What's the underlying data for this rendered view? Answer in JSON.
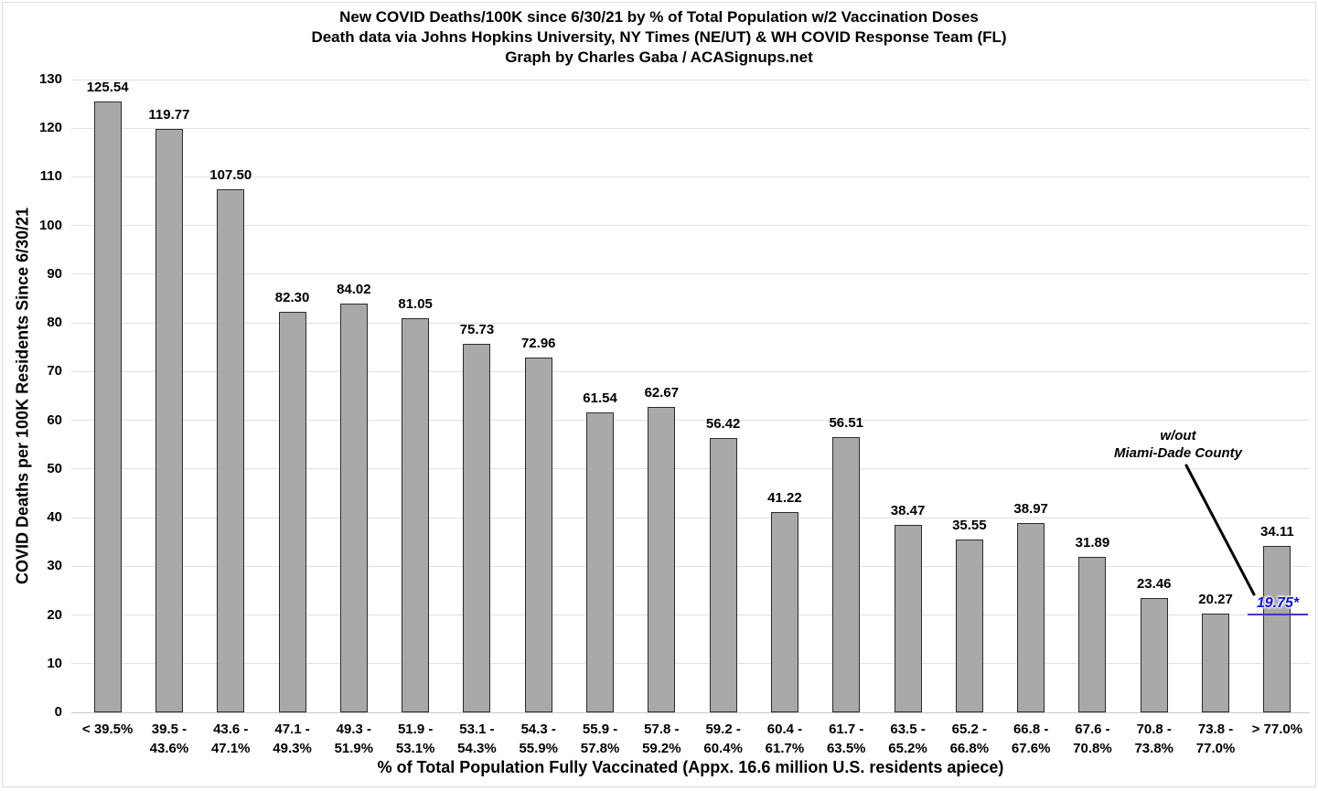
{
  "chart_data": {
    "type": "bar",
    "title": "New COVID Deaths/100K since 6/30/21 by % of Total Population w/2 Vaccination Doses",
    "subtitle": "Death data via Johns Hopkins University, NY Times (NE/UT) & WH COVID Response Team (FL)",
    "credit": "Graph by Charles Gaba / ACASignups.net",
    "categories": [
      "< 39.5%",
      "39.5 -\n43.6%",
      "43.6 -\n47.1%",
      "47.1 -\n49.3%",
      "49.3 -\n51.9%",
      "51.9 -\n53.1%",
      "53.1 -\n54.3%",
      "54.3 -\n55.9%",
      "55.9 -\n57.8%",
      "57.8 -\n59.2%",
      "59.2 -\n60.4%",
      "60.4 -\n61.7%",
      "61.7 -\n63.5%",
      "63.5 -\n65.2%",
      "65.2 -\n66.8%",
      "66.8 -\n67.6%",
      "67.6 -\n70.8%",
      "70.8 -\n73.8%",
      "73.8 -\n77.0%",
      "> 77.0%"
    ],
    "values": [
      125.54,
      119.77,
      107.5,
      82.3,
      84.02,
      81.05,
      75.73,
      72.96,
      61.54,
      62.67,
      56.42,
      41.22,
      56.51,
      38.47,
      35.55,
      38.97,
      31.89,
      23.46,
      20.27,
      34.11
    ],
    "xlabel": "% of Total Population Fully Vaccinated (Appx. 16.6 million U.S. residents apiece)",
    "ylabel": "COVID Deaths per 100K Residents Since 6/30/21",
    "ylim": [
      0,
      130
    ],
    "ytick_step": 10,
    "grid": "horizontal-only",
    "legend": "none",
    "annotations": [
      {
        "type": "callout",
        "label": "w/out\nMiami-Dade County",
        "points_to_category": "> 77.0%"
      },
      {
        "type": "value-marker",
        "label": "19.75*",
        "value": 19.75,
        "category": "> 77.0%",
        "color": "#1414cc"
      }
    ]
  },
  "colors": {
    "background": "#ffffff",
    "bar_fill": "#a9a9a9",
    "bar_border": "#2b2b2b",
    "gridline": "#e0e0e0",
    "axis_line": "#c9c9c9",
    "text": "#000000",
    "annotation_blue": "#1414cc",
    "callout_line": "#000000",
    "frame_border": "#dcdcdc"
  }
}
